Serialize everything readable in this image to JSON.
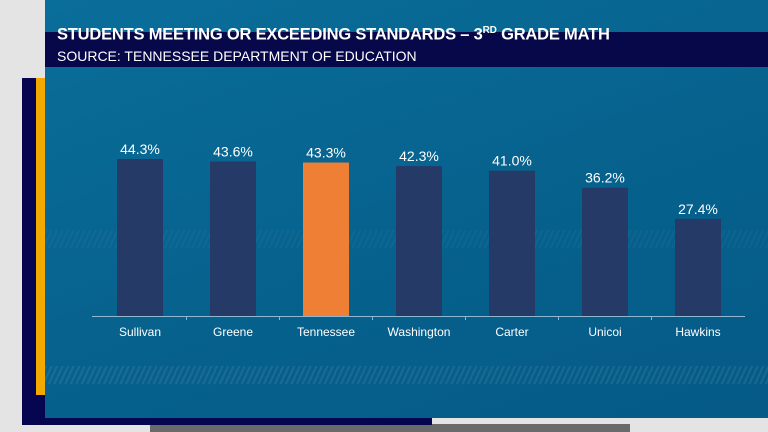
{
  "header": {
    "title_main": "STUDENTS MEETING OR EXCEEDING STANDARDS – 3",
    "title_sup": "RD",
    "title_end": " GRADE MATH",
    "source": "SOURCE: TENNESSEE DEPARTMENT OF EDUCATION"
  },
  "chart_data": {
    "type": "bar",
    "title": "STUDENTS MEETING OR EXCEEDING STANDARDS – 3RD GRADE MATH",
    "subtitle": "SOURCE: TENNESSEE DEPARTMENT OF EDUCATION",
    "categories": [
      "Sullivan",
      "Greene",
      "Tennessee",
      "Washington",
      "Carter",
      "Unicoi",
      "Hawkins"
    ],
    "values": [
      44.3,
      43.6,
      43.3,
      42.3,
      41.0,
      36.2,
      27.4
    ],
    "value_labels": [
      "44.3%",
      "43.6%",
      "43.3%",
      "42.3%",
      "41.0%",
      "36.2%",
      "27.4%"
    ],
    "ylim": [
      0,
      50
    ],
    "grid": false,
    "colors": {
      "default": "#253a66",
      "highlight": "#ef7f35"
    },
    "highlight": "Tennessee"
  }
}
